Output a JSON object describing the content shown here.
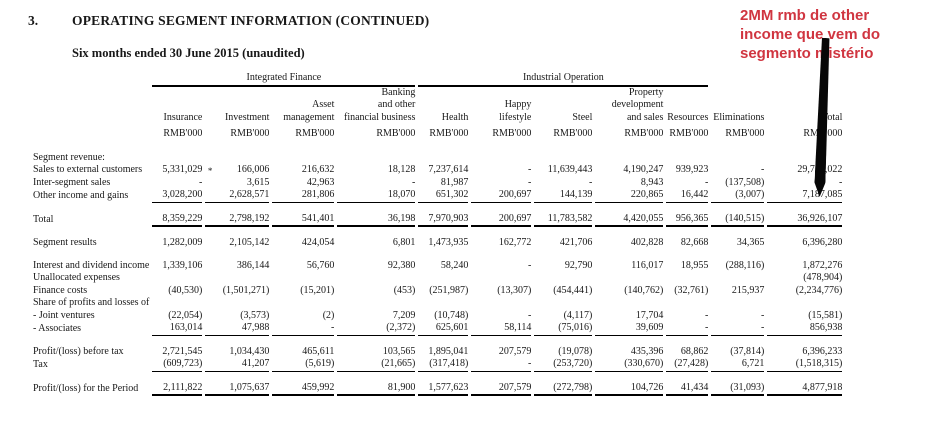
{
  "heading": {
    "number": "3.",
    "title": "OPERATING SEGMENT INFORMATION (CONTINUED)",
    "subtitle": "Six months ended 30 June 2015 (unaudited)"
  },
  "annotation": {
    "color": "#d03540",
    "lines": [
      "2MM rmb de other",
      "income que vem do",
      "segmento mistério"
    ]
  },
  "arrow_icon": "down-arrow-marker",
  "table": {
    "groups": [
      {
        "label": "Integrated Finance",
        "span": 4
      },
      {
        "label": "Industrial Operation",
        "span": 5
      }
    ],
    "columns": [
      "Insurance",
      "Investment",
      "Asset\nmanagement",
      "Banking\nand other\nfinancial business",
      "Health",
      "Happy\nlifestyle",
      "Steel",
      "Property\ndevelopment\nand sales",
      "Resources",
      "Eliminations",
      "Total"
    ],
    "unit": "RMB'000",
    "rows": [
      {
        "label": "Segment revenue:",
        "bold": true,
        "values": [
          "",
          "",
          "",
          "",
          "",
          "",
          "",
          "",
          "",
          "",
          ""
        ]
      },
      {
        "label": "Sales to external customers",
        "values": [
          "5,331,029*",
          "166,006",
          "216,632",
          "18,128",
          "7,237,614",
          "-",
          "11,639,443",
          "4,190,247",
          "939,923",
          "-",
          "29,739,022"
        ]
      },
      {
        "label": "Inter-segment sales",
        "values": [
          "-",
          "3,615",
          "42,963",
          "-",
          "81,987",
          "-",
          "-",
          "8,943",
          "-",
          "(137,508)",
          "-"
        ]
      },
      {
        "label": "Other income and gains",
        "rule": "thin",
        "values": [
          "3,028,200",
          "2,628,571",
          "281,806",
          "18,070",
          "651,302",
          "200,697",
          "144,139",
          "220,865",
          "16,442",
          "(3,007)",
          "7,187,085"
        ]
      },
      {
        "label": "Total",
        "gap_before": true,
        "rule": "thick",
        "values": [
          "8,359,229",
          "2,798,192",
          "541,401",
          "36,198",
          "7,970,903",
          "200,697",
          "11,783,582",
          "4,420,055",
          "956,365",
          "(140,515)",
          "36,926,107"
        ]
      },
      {
        "label": "Segment results",
        "bold": true,
        "gap_before": true,
        "values": [
          "1,282,009",
          "2,105,142",
          "424,054",
          "6,801",
          "1,473,935",
          "162,772",
          "421,706",
          "402,828",
          "82,668",
          "34,365",
          "6,396,280"
        ]
      },
      {
        "label": "Interest and dividend income",
        "gap_before": true,
        "values": [
          "1,339,106",
          "386,144",
          "56,760",
          "92,380",
          "58,240",
          "-",
          "92,790",
          "116,017",
          "18,955",
          "(288,116)",
          "1,872,276"
        ]
      },
      {
        "label": "Unallocated expenses",
        "values": [
          "",
          "",
          "",
          "",
          "",
          "",
          "",
          "",
          "",
          "",
          "(478,904)"
        ]
      },
      {
        "label": "Finance costs",
        "values": [
          "(40,530)",
          "(1,501,271)",
          "(15,201)",
          "(453)",
          "(251,987)",
          "(13,307)",
          "(454,441)",
          "(140,762)",
          "(32,761)",
          "215,937",
          "(2,234,776)"
        ]
      },
      {
        "label": "Share of profits and losses of",
        "values": [
          "",
          "",
          "",
          "",
          "",
          "",
          "",
          "",
          "",
          "",
          ""
        ]
      },
      {
        "label": "- Joint ventures",
        "values": [
          "(22,054)",
          "(3,573)",
          "(2)",
          "7,209",
          "(10,748)",
          "-",
          "(4,117)",
          "17,704",
          "-",
          "-",
          "(15,581)"
        ]
      },
      {
        "label": "- Associates",
        "rule": "thin",
        "values": [
          "163,014",
          "47,988",
          "-",
          "(2,372)",
          "625,601",
          "58,114",
          "(75,016)",
          "39,609",
          "-",
          "-",
          "856,938"
        ]
      },
      {
        "label": "Profit/(loss) before tax",
        "gap_before": true,
        "values": [
          "2,721,545",
          "1,034,430",
          "465,611",
          "103,565",
          "1,895,041",
          "207,579",
          "(19,078)",
          "435,396",
          "68,862",
          "(37,814)",
          "6,396,233"
        ]
      },
      {
        "label": "Tax",
        "rule": "thin",
        "values": [
          "(609,723)",
          "41,207",
          "(5,619)",
          "(21,665)",
          "(317,418)",
          "-",
          "(253,720)",
          "(330,670)",
          "(27,428)",
          "6,721",
          "(1,518,315)"
        ]
      },
      {
        "label": "Profit/(loss) for the Period",
        "gap_before": true,
        "rule": "thick",
        "values": [
          "2,111,822",
          "1,075,637",
          "459,992",
          "81,900",
          "1,577,623",
          "207,579",
          "(272,798)",
          "104,726",
          "41,434",
          "(31,093)",
          "4,877,918"
        ]
      }
    ]
  }
}
